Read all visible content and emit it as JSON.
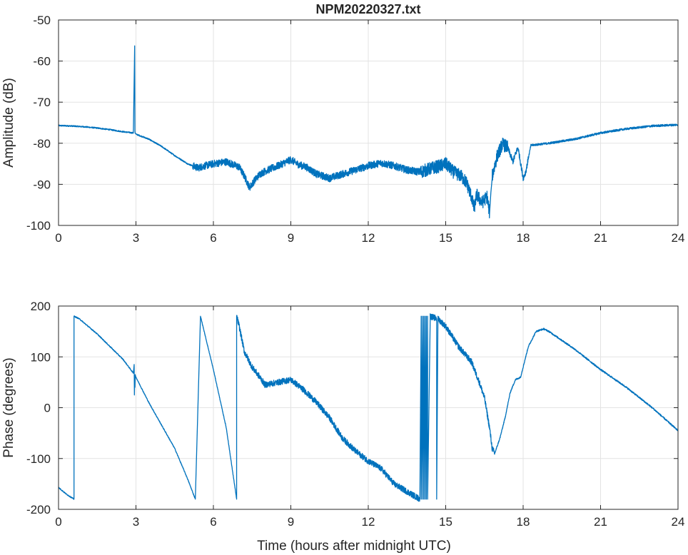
{
  "figure": {
    "title": "NPM20220327.txt",
    "xlabel": "Time (hours after midnight UTC)"
  },
  "colors": {
    "line": "#0072bd",
    "grid": "#e3e3e3",
    "axis": "#262626",
    "background": "#ffffff"
  },
  "chart_data": [
    {
      "type": "line",
      "title": "NPM20220327.txt",
      "xlabel": "",
      "ylabel": "Amplitude (dB)",
      "xlim": [
        0,
        24
      ],
      "ylim": [
        -100,
        -50
      ],
      "xticks": [
        0,
        3,
        6,
        9,
        12,
        15,
        18,
        21,
        24
      ],
      "yticks": [
        -100,
        -90,
        -80,
        -70,
        -60,
        -50
      ],
      "grid": true,
      "noise": [
        {
          "from": 0,
          "to": 5.2,
          "amp": 0.15
        },
        {
          "from": 5.2,
          "to": 14.0,
          "amp": 0.9
        },
        {
          "from": 14.0,
          "to": 17.4,
          "amp": 1.6
        },
        {
          "from": 17.4,
          "to": 18.2,
          "amp": 0.7
        },
        {
          "from": 18.2,
          "to": 24,
          "amp": 0.25
        }
      ],
      "series": [
        {
          "x": [
            0,
            0.5,
            1.0,
            1.5,
            2.0,
            2.5,
            2.9,
            2.95,
            2.96,
            2.97,
            3.0,
            3.5,
            4.0,
            4.5,
            5.0,
            5.4,
            5.6,
            6.0,
            6.5,
            7.0,
            7.2,
            7.4,
            7.6,
            7.8,
            8.0,
            8.5,
            9.0,
            9.3,
            9.6,
            10.0,
            10.5,
            11.0,
            11.5,
            12.0,
            12.5,
            13.0,
            13.5,
            14.0,
            14.5,
            14.8,
            15.0,
            15.3,
            15.6,
            15.8,
            16.0,
            16.1,
            16.2,
            16.4,
            16.6,
            16.7,
            16.75,
            16.8,
            17.0,
            17.2,
            17.4,
            17.6,
            17.8,
            18.0,
            18.1,
            18.3,
            19.0,
            20.0,
            21.0,
            22.0,
            23.0,
            24.0
          ],
          "y": [
            -75.7,
            -75.8,
            -76.0,
            -76.3,
            -76.7,
            -77.2,
            -77.5,
            -56.3,
            -77.0,
            -77.6,
            -77.8,
            -79.0,
            -80.8,
            -83.0,
            -85.0,
            -86.0,
            -85.6,
            -85.0,
            -84.5,
            -85.8,
            -88.0,
            -90.8,
            -89.0,
            -87.5,
            -86.8,
            -85.5,
            -84.0,
            -85.2,
            -85.8,
            -87.5,
            -88.5,
            -87.5,
            -86.5,
            -85.5,
            -84.8,
            -85.5,
            -86.5,
            -87.0,
            -86.0,
            -85.5,
            -85.0,
            -87.0,
            -88.0,
            -89.5,
            -93.0,
            -96.0,
            -92.5,
            -94.5,
            -93.0,
            -97.0,
            -92.0,
            -88.0,
            -83.0,
            -80.2,
            -81.0,
            -84.5,
            -81.0,
            -88.5,
            -87.0,
            -80.5,
            -80.0,
            -79.0,
            -77.5,
            -76.5,
            -75.8,
            -75.5
          ]
        }
      ]
    },
    {
      "type": "line",
      "title": "",
      "xlabel": "Time (hours after midnight UTC)",
      "ylabel": "Phase (degrees)",
      "xlim": [
        0,
        24
      ],
      "ylim": [
        -200,
        200
      ],
      "xticks": [
        0,
        3,
        6,
        9,
        12,
        15,
        18,
        21,
        24
      ],
      "yticks": [
        -200,
        -100,
        0,
        100,
        200
      ],
      "grid": true,
      "noise": [
        {
          "from": 0,
          "to": 6.9,
          "amp": 1.0
        },
        {
          "from": 6.9,
          "to": 16.9,
          "amp": 6.0
        },
        {
          "from": 16.9,
          "to": 24,
          "amp": 1.5
        }
      ],
      "series": [
        {
          "x": [
            0,
            0.3,
            0.6,
            0.6,
            0.8,
            1.5,
            2.0,
            2.5,
            2.9,
            2.93,
            2.94,
            2.95,
            2.96,
            2.97,
            3.0,
            3.5,
            4.0,
            4.5,
            5.0,
            5.3,
            5.5,
            5.5,
            6.0,
            6.5,
            6.9,
            6.9,
            7.0,
            7.2,
            7.5,
            7.8,
            8.0,
            8.5,
            9.0,
            9.5,
            10.0,
            10.5,
            11.0,
            11.5,
            12.0,
            12.5,
            13.0,
            13.5,
            14.0,
            14.05,
            14.05,
            14.1,
            14.1,
            14.15,
            14.15,
            14.2,
            14.2,
            14.25,
            14.25,
            14.3,
            14.3,
            14.4,
            14.4,
            14.5,
            14.65,
            14.65,
            14.7,
            14.7,
            15.0,
            15.5,
            16.0,
            16.3,
            16.5,
            16.7,
            16.8,
            16.9,
            17.1,
            17.3,
            17.5,
            17.7,
            17.9,
            18.0,
            18.2,
            18.5,
            18.8,
            19.0,
            20.0,
            21.0,
            22.0,
            23.0,
            24.0
          ],
          "y": [
            -157,
            -170,
            -180,
            180,
            175,
            145,
            120,
            95,
            68,
            85,
            25,
            60,
            40,
            65,
            60,
            10,
            -35,
            -80,
            -140,
            -180,
            180,
            180,
            75,
            -40,
            -180,
            180,
            160,
            110,
            80,
            60,
            45,
            50,
            55,
            35,
            10,
            -20,
            -60,
            -85,
            -105,
            -120,
            -150,
            -165,
            -180,
            180,
            -180,
            180,
            -180,
            180,
            -180,
            180,
            -180,
            180,
            -180,
            180,
            -180,
            175,
            180,
            178,
            175,
            -180,
            180,
            175,
            160,
            120,
            90,
            50,
            20,
            -40,
            -80,
            -90,
            -60,
            -20,
            30,
            55,
            60,
            80,
            120,
            150,
            155,
            150,
            115,
            75,
            40,
            0,
            -45
          ]
        }
      ]
    }
  ]
}
